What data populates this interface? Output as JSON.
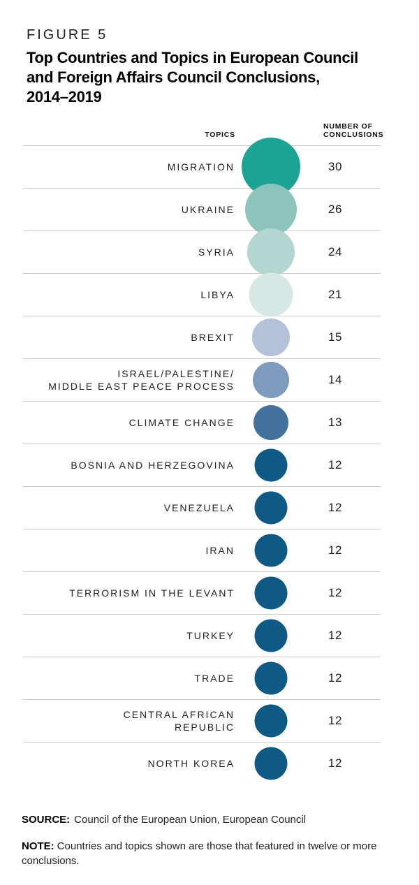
{
  "figure": {
    "kicker": "FIGURE 5",
    "title_lines": [
      "Top Countries and Topics in European Council",
      "and Foreign Affairs Council Conclusions,",
      "2014–2019"
    ]
  },
  "table": {
    "topics_header": "TOPICS",
    "number_header": "NUMBER OF\nCONCLUSIONS"
  },
  "chart_data": {
    "type": "bubble",
    "title": "Top Countries and Topics in European Council and Foreign Affairs Council Conclusions, 2014–2019",
    "xlabel": "TOPICS",
    "ylabel": "NUMBER OF CONCLUSIONS",
    "value_range": [
      12,
      30
    ],
    "grid": "horizontal-rules",
    "rows": [
      {
        "label": "MIGRATION",
        "value": 30,
        "color": "#1BA493",
        "diameter": 84
      },
      {
        "label": "UKRAINE",
        "value": 26,
        "color": "#8CC4BB",
        "diameter": 74
      },
      {
        "label": "SYRIA",
        "value": 24,
        "color": "#B3D7D0",
        "diameter": 68
      },
      {
        "label": "LIBYA",
        "value": 21,
        "color": "#D6E8E3",
        "diameter": 63
      },
      {
        "label": "BREXIT",
        "value": 15,
        "color": "#B3C2D8",
        "diameter": 54
      },
      {
        "label": "ISRAEL/PALESTINE/\nMIDDLE EAST PEACE PROCESS",
        "value": 14,
        "color": "#7E9ABD",
        "diameter": 52
      },
      {
        "label": "CLIMATE CHANGE",
        "value": 13,
        "color": "#42719E",
        "diameter": 50
      },
      {
        "label": "BOSNIA AND HERZEGOVINA",
        "value": 12,
        "color": "#0F5A85",
        "diameter": 47
      },
      {
        "label": "VENEZUELA",
        "value": 12,
        "color": "#0F5A85",
        "diameter": 47
      },
      {
        "label": "IRAN",
        "value": 12,
        "color": "#0F5A85",
        "diameter": 47
      },
      {
        "label": "TERRORISM IN THE LEVANT",
        "value": 12,
        "color": "#0F5A85",
        "diameter": 47
      },
      {
        "label": "TURKEY",
        "value": 12,
        "color": "#0F5A85",
        "diameter": 47
      },
      {
        "label": "TRADE",
        "value": 12,
        "color": "#0F5A85",
        "diameter": 47
      },
      {
        "label": "CENTRAL AFRICAN\nREPUBLIC",
        "value": 12,
        "color": "#0F5A85",
        "diameter": 47
      },
      {
        "label": "NORTH KOREA",
        "value": 12,
        "color": "#0F5A85",
        "diameter": 47
      }
    ]
  },
  "footer": {
    "source_label": "SOURCE:",
    "source_text": "Council of the European Union, European Council",
    "note_label": "NOTE:",
    "note_text": "Countries and topics shown are those that featured in twelve or more conclusions."
  },
  "colors": {
    "rule": "#CCCCCC",
    "teal_max": "#1BA493",
    "dark_blue": "#0F5A85"
  }
}
